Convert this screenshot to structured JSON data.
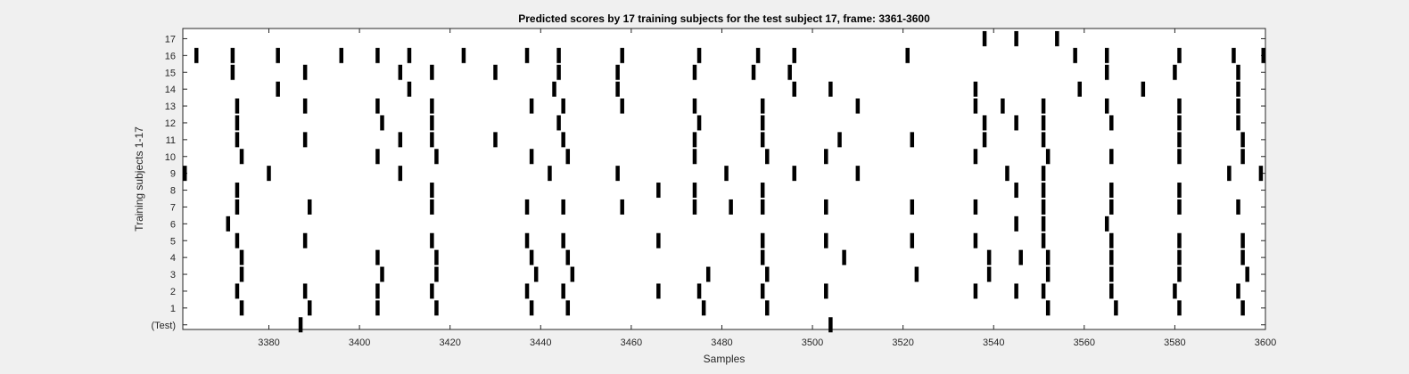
{
  "chart_data": {
    "type": "scatter",
    "title": "Predicted scores by 17 training subjects for the test subject 17, frame: 3361-3600",
    "xlabel": "Samples",
    "ylabel": "Training subjects 1-17",
    "xlim": [
      3361,
      3600
    ],
    "x_ticks": [
      3380,
      3400,
      3420,
      3440,
      3460,
      3480,
      3500,
      3520,
      3540,
      3560,
      3580,
      3600
    ],
    "grid": false,
    "rows": [
      {
        "label": "(Test)",
        "marks": [
          3387,
          3504
        ]
      },
      {
        "label": "1",
        "marks": [
          3374,
          3389,
          3404,
          3417,
          3438,
          3446,
          3476,
          3490,
          3552,
          3567,
          3581,
          3595
        ]
      },
      {
        "label": "2",
        "marks": [
          3373,
          3388,
          3404,
          3416,
          3437,
          3445,
          3466,
          3475,
          3489,
          3503,
          3536,
          3545,
          3551,
          3566,
          3580,
          3594
        ]
      },
      {
        "label": "3",
        "marks": [
          3374,
          3405,
          3417,
          3439,
          3447,
          3477,
          3490,
          3523,
          3539,
          3552,
          3566,
          3581,
          3596
        ]
      },
      {
        "label": "4",
        "marks": [
          3374,
          3404,
          3417,
          3438,
          3446,
          3489,
          3507,
          3539,
          3546,
          3552,
          3566,
          3581,
          3595
        ]
      },
      {
        "label": "5",
        "marks": [
          3373,
          3388,
          3416,
          3437,
          3445,
          3466,
          3489,
          3503,
          3522,
          3536,
          3551,
          3566,
          3581,
          3595
        ]
      },
      {
        "label": "6",
        "marks": [
          3371,
          3545,
          3551,
          3565
        ]
      },
      {
        "label": "7",
        "marks": [
          3373,
          3389,
          3416,
          3437,
          3445,
          3458,
          3474,
          3482,
          3489,
          3503,
          3522,
          3536,
          3551,
          3566,
          3581,
          3594
        ]
      },
      {
        "label": "8",
        "marks": [
          3373,
          3416,
          3466,
          3474,
          3489,
          3545,
          3551,
          3566,
          3581
        ]
      },
      {
        "label": "9",
        "marks": [
          3361,
          3380,
          3409,
          3442,
          3457,
          3481,
          3496,
          3510,
          3543,
          3551,
          3592,
          3599
        ]
      },
      {
        "label": "10",
        "marks": [
          3374,
          3404,
          3417,
          3438,
          3446,
          3474,
          3490,
          3503,
          3536,
          3552,
          3566,
          3581,
          3595
        ]
      },
      {
        "label": "11",
        "marks": [
          3373,
          3388,
          3409,
          3416,
          3430,
          3445,
          3474,
          3489,
          3506,
          3522,
          3538,
          3551,
          3581,
          3595
        ]
      },
      {
        "label": "12",
        "marks": [
          3373,
          3405,
          3416,
          3444,
          3475,
          3489,
          3538,
          3545,
          3551,
          3566,
          3581,
          3594
        ]
      },
      {
        "label": "13",
        "marks": [
          3373,
          3388,
          3404,
          3416,
          3438,
          3445,
          3458,
          3474,
          3489,
          3510,
          3536,
          3542,
          3551,
          3565,
          3581,
          3594
        ]
      },
      {
        "label": "14",
        "marks": [
          3382,
          3411,
          3443,
          3457,
          3496,
          3504,
          3536,
          3559,
          3573,
          3594
        ]
      },
      {
        "label": "15",
        "marks": [
          3372,
          3388,
          3409,
          3416,
          3430,
          3444,
          3457,
          3474,
          3487,
          3495,
          3565,
          3580,
          3594
        ]
      },
      {
        "label": "16",
        "marks": [
          3364,
          3372,
          3382,
          3396,
          3404,
          3411,
          3423,
          3437,
          3444,
          3458,
          3475,
          3488,
          3496,
          3521,
          3558,
          3565,
          3581,
          3593,
          3600
        ]
      },
      {
        "label": "17",
        "marks": [
          3538,
          3545,
          3554
        ]
      }
    ]
  }
}
